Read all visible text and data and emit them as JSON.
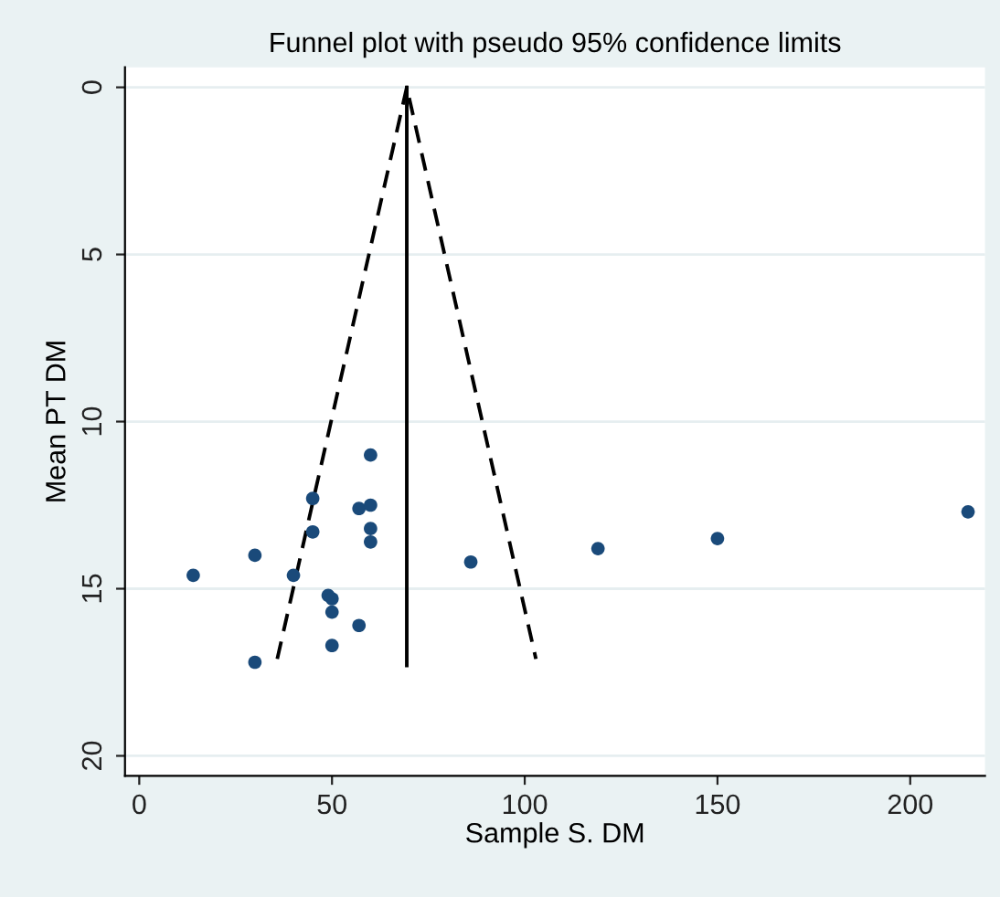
{
  "chart_data": {
    "type": "scatter",
    "title": "Funnel plot with pseudo 95% confidence limits",
    "xlabel": "Sample S. DM",
    "ylabel": "Mean PT DM",
    "xlim": [
      -3.7,
      219.4
    ],
    "xticks": [
      0,
      50,
      100,
      150,
      200
    ],
    "ylim": [
      20.6,
      -0.6
    ],
    "yticks": [
      0,
      5,
      10,
      15,
      20
    ],
    "grid": "y",
    "marker": "circle",
    "series": [
      {
        "color": "#1a4a7a",
        "x": [
          60,
          45,
          57,
          60,
          45,
          60,
          60,
          30,
          14,
          40,
          86,
          119,
          150,
          215,
          49,
          50,
          50,
          57,
          50,
          30
        ],
        "values": [
          11.0,
          12.3,
          12.6,
          12.5,
          13.3,
          13.2,
          13.6,
          14.0,
          14.6,
          14.6,
          14.2,
          13.8,
          13.5,
          12.7,
          15.2,
          15.3,
          15.7,
          16.1,
          16.7,
          17.2
        ]
      },
      {
        "type": "line",
        "color": "#000000",
        "line_style": "solid",
        "marker": "none",
        "x": [
          69.4,
          69.4
        ],
        "values": [
          0,
          17.3
        ]
      },
      {
        "type": "line",
        "color": "#000000",
        "line_style": "dashed",
        "marker": "none",
        "x": [
          35.8,
          69.4,
          102.9
        ],
        "values": [
          17.1,
          0,
          17.1
        ]
      }
    ]
  }
}
